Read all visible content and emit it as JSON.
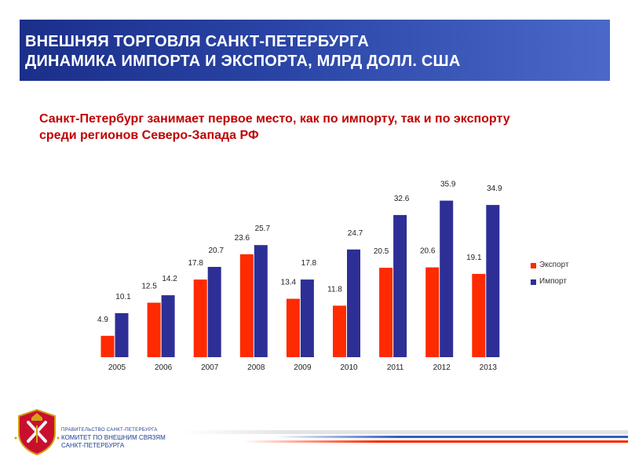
{
  "header": {
    "title_line1": "ВНЕШНЯЯ ТОРГОВЛЯ САНКТ-ПЕТЕРБУРГА",
    "title_line2": "ДИНАМИКА ИМПОРТА И ЭКСПОРТА, МЛРД ДОЛЛ. США",
    "background": "#1b2f8a"
  },
  "subtitle": {
    "line1": "Санкт-Петербург занимает первое место, как по импорту, так и по экспорту",
    "line2": "среди регионов Северо-Запада РФ",
    "color": "#c00000"
  },
  "chart_data": {
    "type": "bar",
    "categories": [
      "2005",
      "2006",
      "2007",
      "2008",
      "2009",
      "2010",
      "2011",
      "2012",
      "2013"
    ],
    "series": [
      {
        "name": "Экспорт",
        "color": "#ff2a00",
        "values": [
          4.9,
          12.5,
          17.8,
          23.6,
          13.4,
          11.8,
          20.5,
          20.6,
          19.1
        ]
      },
      {
        "name": "Импорт",
        "color": "#2e2f96",
        "values": [
          10.1,
          14.2,
          20.7,
          25.7,
          17.8,
          24.7,
          32.6,
          35.9,
          34.9
        ]
      }
    ],
    "ylim": [
      0,
      36
    ],
    "legend_position": "right",
    "grid": false
  },
  "footer": {
    "org_line1": "ПРАВИТЕЛЬСТВО САНКТ-ПЕТЕРБУРГА",
    "org_line2": "КОМИТЕТ ПО ВНЕШНИМ СВЯЗЯМ",
    "org_line3": "САНКТ-ПЕТЕРБУРГА",
    "logo": "st-petersburg-coat-of-arms-icon"
  }
}
